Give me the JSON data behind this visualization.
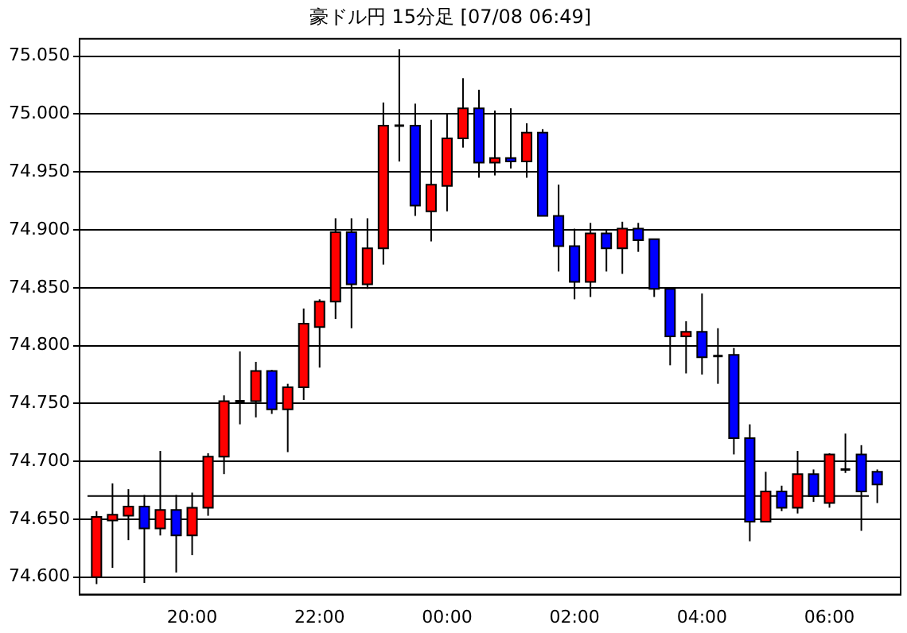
{
  "chart_data": {
    "type": "candlestick",
    "title": "豪ドル円 15分足 [07/08 06:49]",
    "x": [
      "--07-07T18:30",
      "--07-07T18:45",
      "--07-07T19:00",
      "--07-07T19:15",
      "--07-07T19:30",
      "--07-07T19:45",
      "--07-07T20:00",
      "--07-07T20:15",
      "--07-07T20:30",
      "--07-07T20:45",
      "--07-07T21:00",
      "--07-07T21:15",
      "--07-07T21:30",
      "--07-07T21:45",
      "--07-07T22:00",
      "--07-07T22:15",
      "--07-07T22:30",
      "--07-07T22:45",
      "--07-07T23:00",
      "--07-07T23:15",
      "--07-07T23:30",
      "--07-07T23:45",
      "--07-08T00:00",
      "--07-08T00:15",
      "--07-08T00:30",
      "--07-08T00:45",
      "--07-08T01:00",
      "--07-08T01:15",
      "--07-08T01:30",
      "--07-08T01:45",
      "--07-08T02:00",
      "--07-08T02:15",
      "--07-08T02:30",
      "--07-08T02:45",
      "--07-08T03:00",
      "--07-08T03:15",
      "--07-08T03:30",
      "--07-08T03:45",
      "--07-08T04:00",
      "--07-08T04:15",
      "--07-08T04:30",
      "--07-08T04:45",
      "--07-08T05:00",
      "--07-08T05:15",
      "--07-08T05:30",
      "--07-08T05:45",
      "--07-08T06:00",
      "--07-08T06:15",
      "--07-08T06:30",
      "--07-08T06:45"
    ],
    "ohlc": [
      [
        74.6,
        74.657,
        74.594,
        74.652
      ],
      [
        74.649,
        74.681,
        74.608,
        74.654
      ],
      [
        74.653,
        74.676,
        74.632,
        74.661
      ],
      [
        74.661,
        74.671,
        74.595,
        74.642
      ],
      [
        74.642,
        74.709,
        74.636,
        74.658
      ],
      [
        74.658,
        74.671,
        74.604,
        74.636
      ],
      [
        74.636,
        74.673,
        74.619,
        74.66
      ],
      [
        74.66,
        74.707,
        74.653,
        74.704
      ],
      [
        74.704,
        74.757,
        74.689,
        74.752
      ],
      [
        74.752,
        74.795,
        74.732,
        74.752
      ],
      [
        74.752,
        74.786,
        74.738,
        74.778
      ],
      [
        74.778,
        74.779,
        74.741,
        74.745
      ],
      [
        74.745,
        74.767,
        74.708,
        74.764
      ],
      [
        74.764,
        74.832,
        74.753,
        74.819
      ],
      [
        74.816,
        74.84,
        74.781,
        74.838
      ],
      [
        74.838,
        74.91,
        74.823,
        74.898
      ],
      [
        74.898,
        74.91,
        74.815,
        74.853
      ],
      [
        74.853,
        74.91,
        74.849,
        74.884
      ],
      [
        74.884,
        75.01,
        74.87,
        74.99
      ],
      [
        74.99,
        75.056,
        74.959,
        74.99
      ],
      [
        74.99,
        75.009,
        74.912,
        74.921
      ],
      [
        74.916,
        74.995,
        74.89,
        74.939
      ],
      [
        74.938,
        75.0,
        74.916,
        74.979
      ],
      [
        74.979,
        75.031,
        74.971,
        75.005
      ],
      [
        75.005,
        75.021,
        74.945,
        74.958
      ],
      [
        74.958,
        75.003,
        74.947,
        74.962
      ],
      [
        74.962,
        75.005,
        74.953,
        74.959
      ],
      [
        74.959,
        74.992,
        74.945,
        74.984
      ],
      [
        74.984,
        74.987,
        74.912,
        74.912
      ],
      [
        74.912,
        74.939,
        74.864,
        74.886
      ],
      [
        74.886,
        74.901,
        74.84,
        74.855
      ],
      [
        74.855,
        74.906,
        74.842,
        74.897
      ],
      [
        74.897,
        74.9,
        74.864,
        74.884
      ],
      [
        74.884,
        74.907,
        74.862,
        74.901
      ],
      [
        74.901,
        74.906,
        74.881,
        74.891
      ],
      [
        74.892,
        74.892,
        74.842,
        74.849
      ],
      [
        74.849,
        74.849,
        74.783,
        74.808
      ],
      [
        74.808,
        74.821,
        74.776,
        74.812
      ],
      [
        74.812,
        74.845,
        74.775,
        74.79
      ],
      [
        74.791,
        74.815,
        74.767,
        74.791
      ],
      [
        74.792,
        74.798,
        74.706,
        74.72
      ],
      [
        74.72,
        74.732,
        74.631,
        74.648
      ],
      [
        74.648,
        74.691,
        74.648,
        74.674
      ],
      [
        74.674,
        74.679,
        74.657,
        74.66
      ],
      [
        74.66,
        74.709,
        74.655,
        74.689
      ],
      [
        74.689,
        74.693,
        74.665,
        74.67
      ],
      [
        74.664,
        74.707,
        74.66,
        74.706
      ],
      [
        74.693,
        74.724,
        74.69,
        74.693
      ],
      [
        74.706,
        74.714,
        74.64,
        74.674
      ],
      [
        74.691,
        74.693,
        74.664,
        74.68
      ]
    ],
    "colors": [
      "#ff0000",
      "#ff0000",
      "#ff0000",
      "#0000ff",
      "#ff0000",
      "#0000ff",
      "#ff0000",
      "#ff0000",
      "#ff0000",
      "#000000",
      "#ff0000",
      "#0000ff",
      "#ff0000",
      "#ff0000",
      "#ff0000",
      "#ff0000",
      "#0000ff",
      "#ff0000",
      "#ff0000",
      "#000000",
      "#0000ff",
      "#ff0000",
      "#ff0000",
      "#ff0000",
      "#0000ff",
      "#ff0000",
      "#0000ff",
      "#ff0000",
      "#0000ff",
      "#0000ff",
      "#0000ff",
      "#ff0000",
      "#0000ff",
      "#ff0000",
      "#0000ff",
      "#0000ff",
      "#0000ff",
      "#ff0000",
      "#0000ff",
      "#000000",
      "#0000ff",
      "#0000ff",
      "#ff0000",
      "#0000ff",
      "#ff0000",
      "#0000ff",
      "#ff0000",
      "#000000",
      "#0000ff",
      "#0000ff"
    ],
    "xlim": [
      "--07-07T18:14",
      "--07-08T07:07"
    ],
    "xticks": [
      {
        "value": "--07-07T20:00",
        "label": "20:00"
      },
      {
        "value": "--07-07T22:00",
        "label": "22:00"
      },
      {
        "value": "--07-08T00:00",
        "label": "00:00"
      },
      {
        "value": "--07-08T02:00",
        "label": "02:00"
      },
      {
        "value": "--07-08T04:00",
        "label": "04:00"
      },
      {
        "value": "--07-08T06:00",
        "label": "06:00"
      }
    ],
    "ylim": [
      74.585,
      75.065
    ],
    "yticks": [
      {
        "value": 74.6,
        "label": "74.600"
      },
      {
        "value": 74.65,
        "label": "74.650"
      },
      {
        "value": 74.7,
        "label": "74.700"
      },
      {
        "value": 74.75,
        "label": "74.750"
      },
      {
        "value": 74.8,
        "label": "74.800"
      },
      {
        "value": 74.85,
        "label": "74.850"
      },
      {
        "value": 74.9,
        "label": "74.900"
      },
      {
        "value": 74.95,
        "label": "74.950"
      },
      {
        "value": 75.0,
        "label": "75.000"
      },
      {
        "value": 75.05,
        "label": "75.050"
      }
    ],
    "ref_lines": [
      {
        "axis": "y",
        "value": 74.67,
        "color": "#000000"
      }
    ],
    "grid": "y",
    "legend": false
  }
}
